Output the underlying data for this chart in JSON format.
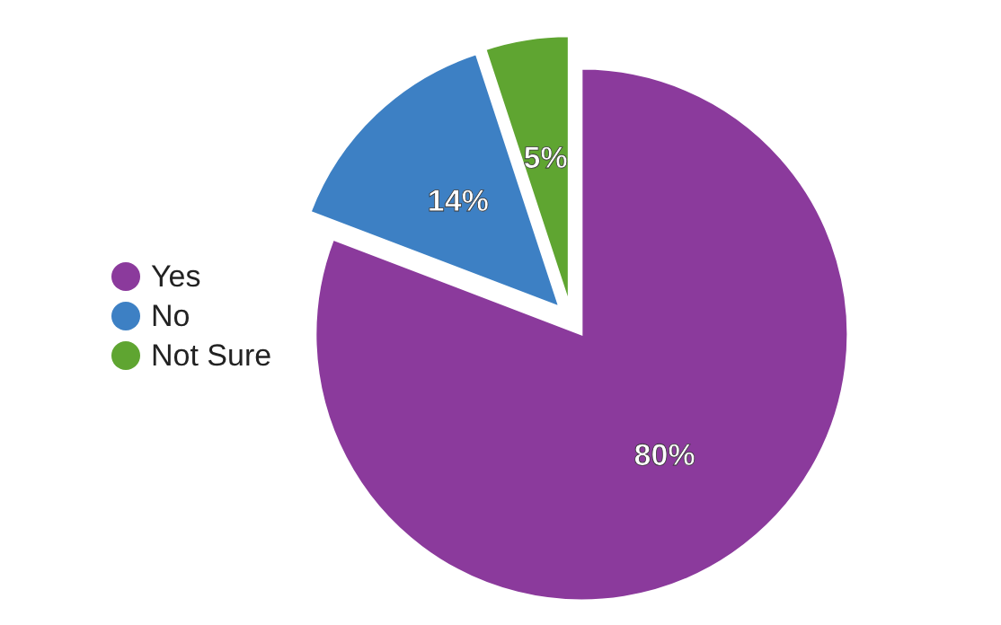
{
  "chart_data": {
    "type": "pie",
    "categories": [
      "Yes",
      "No",
      "Not Sure"
    ],
    "values": [
      80,
      14,
      5
    ],
    "colors": [
      "#8b3a9c",
      "#3d80c4",
      "#5fa531"
    ],
    "value_labels": [
      "80%",
      "14%",
      "5%"
    ],
    "legend": "left"
  }
}
